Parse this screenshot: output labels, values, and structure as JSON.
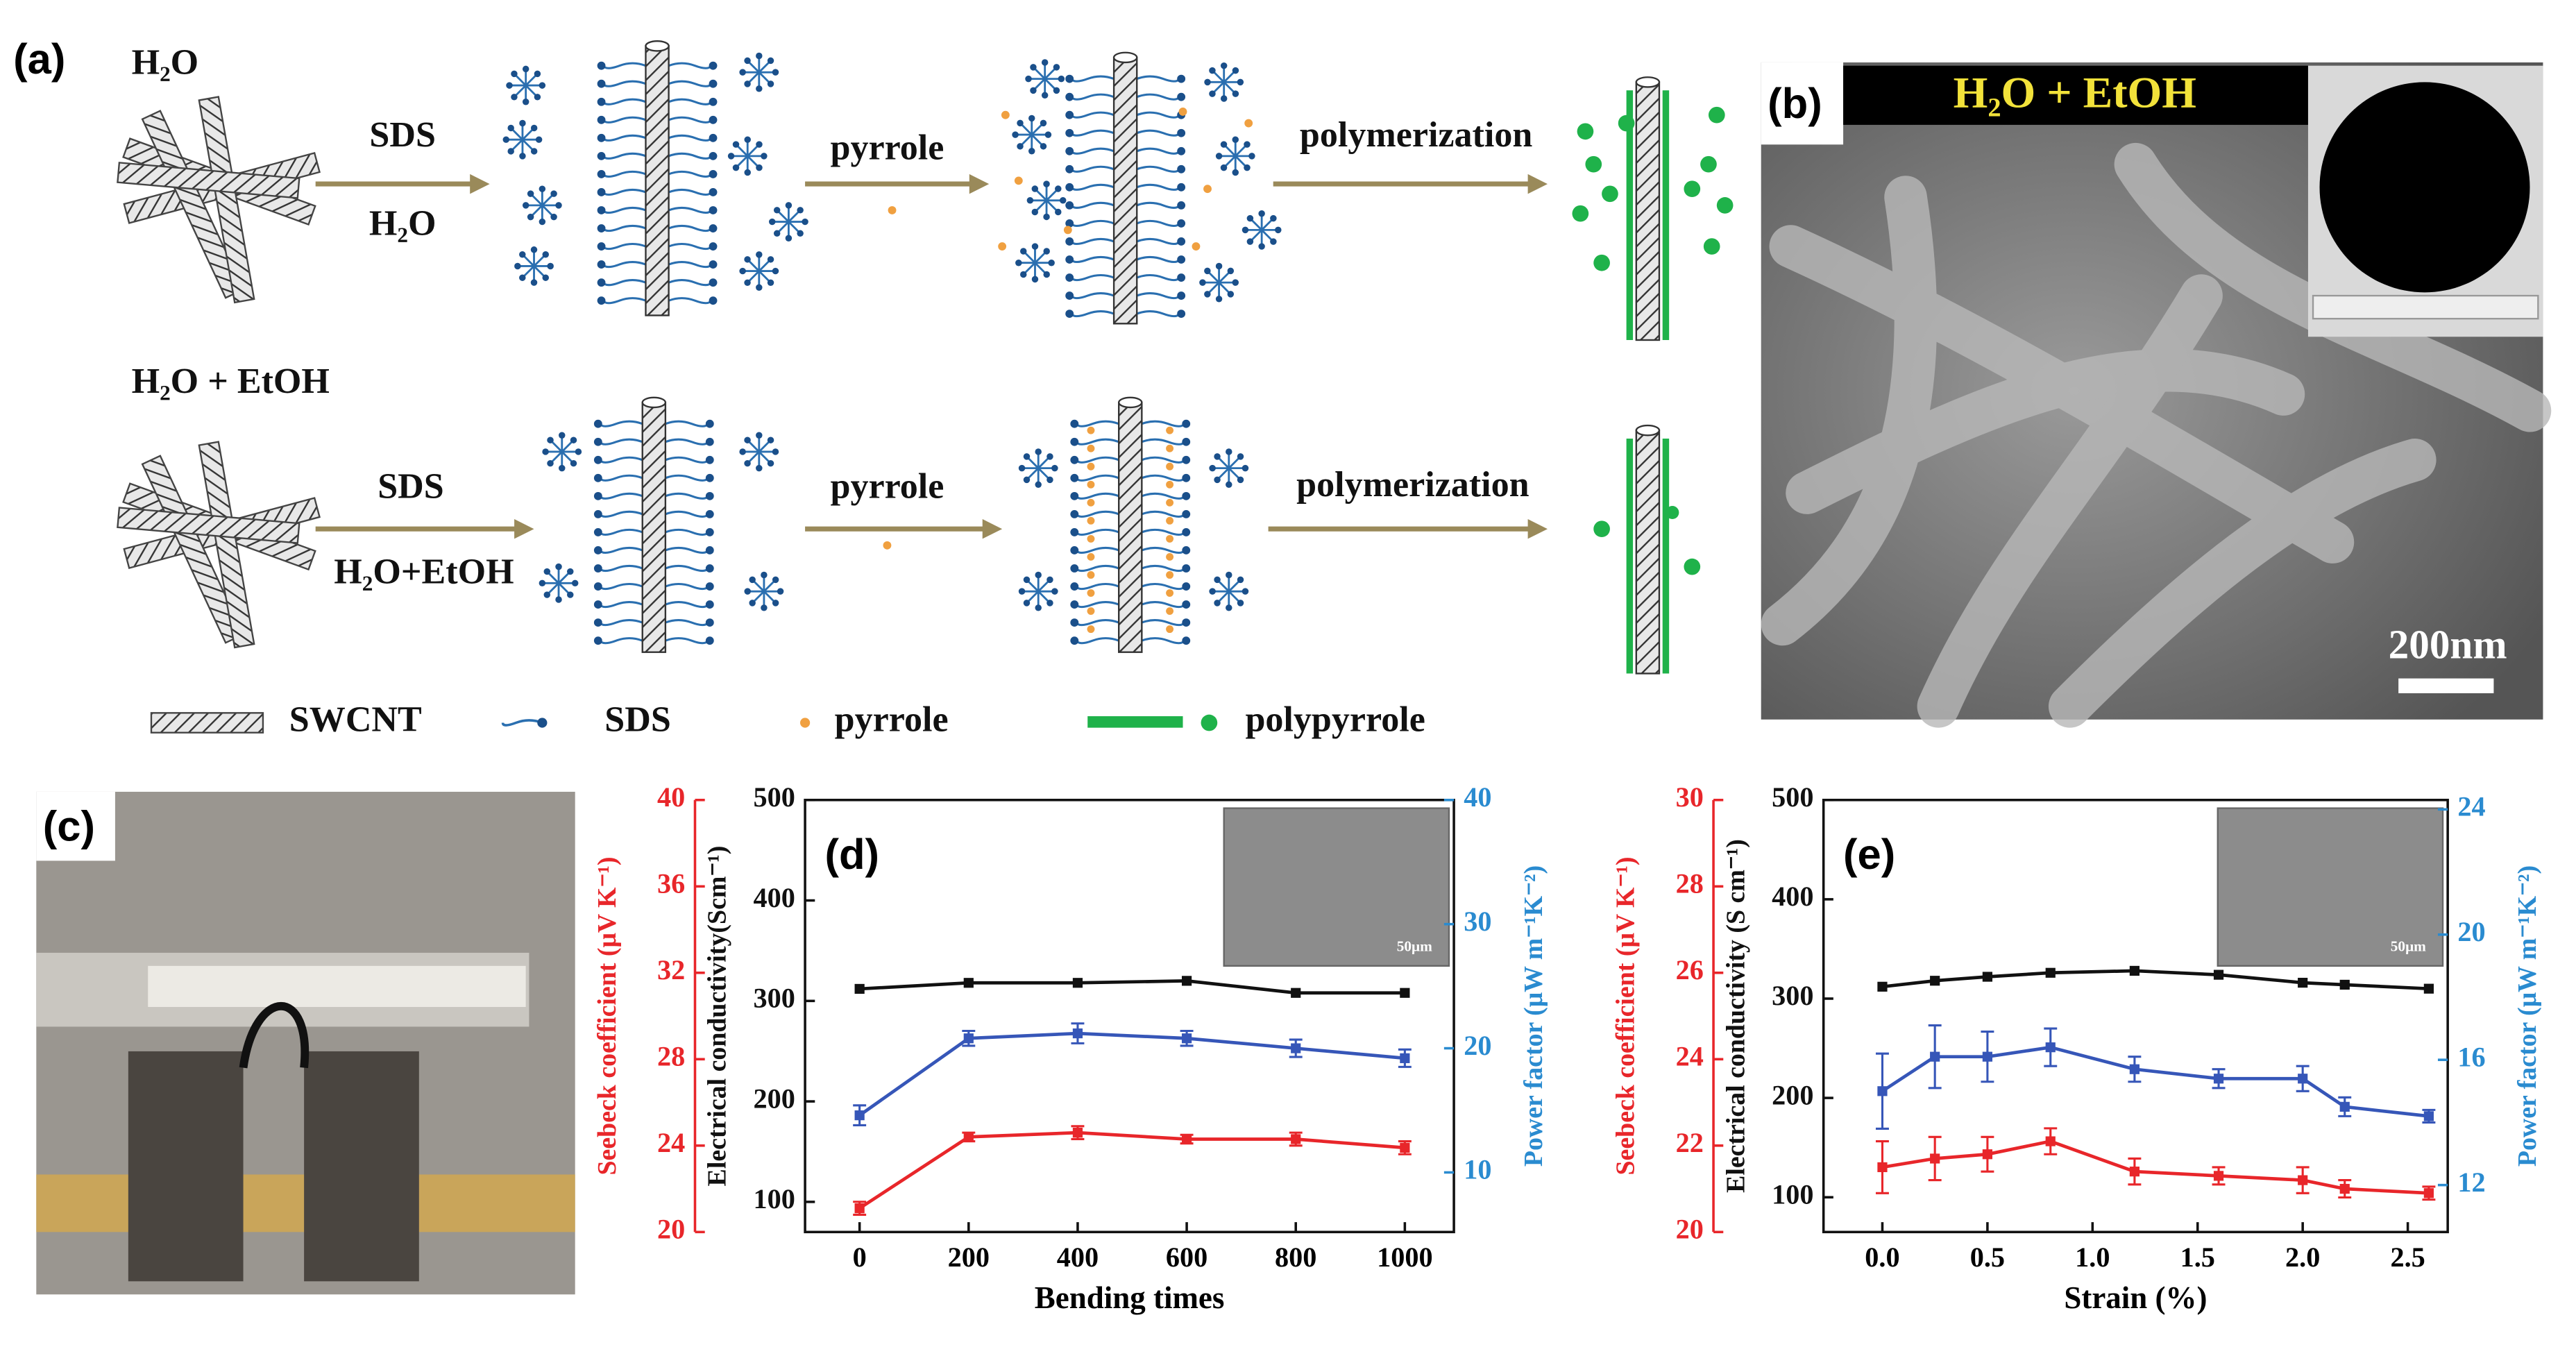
{
  "panels": {
    "a": "(a)",
    "b": "(b)",
    "c": "(c)"
  },
  "schematic": {
    "row1": {
      "solvent": "H₂O",
      "reagent": "SDS",
      "medium": "H₂O",
      "monomer": "pyrrole",
      "process": "polymerization"
    },
    "row2": {
      "solvent": "H₂O + EtOH",
      "reagent": "SDS",
      "medium": "H₂O+EtOH",
      "monomer": "pyrrole",
      "process": "polymerization"
    },
    "legend": [
      "SWCNT",
      "SDS",
      "pyrrole",
      "polypyrrole"
    ]
  },
  "sem": {
    "label": "H₂O + EtOH",
    "scale_bar": "200nm"
  },
  "chart_data": [
    {
      "type": "line",
      "label": "(d)",
      "inset_scale": "50μm",
      "x": [
        0,
        200,
        400,
        600,
        800,
        1000
      ],
      "xlabel": "Bending times",
      "xlim": [
        -100,
        1090
      ],
      "xticks": [
        0,
        200,
        400,
        600,
        800,
        1000
      ],
      "ylabel": "Electrical conductivity(Scm⁻¹)",
      "ylim": [
        70,
        500
      ],
      "yticks": [
        100,
        200,
        300,
        400,
        500
      ],
      "y2label": "Power factor (μW m⁻¹K⁻²)",
      "y2lim": [
        5.2,
        40
      ],
      "y2ticks": [
        10,
        20,
        30,
        40
      ],
      "y3label": "Seebeck coefficient (μV K⁻¹)",
      "y3lim": [
        20,
        40
      ],
      "y3ticks": [
        20,
        24,
        28,
        32,
        36,
        40
      ],
      "series": [
        {
          "color": "#111111",
          "axis": "y",
          "values": [
            312,
            318,
            318,
            320,
            308,
            308
          ]
        },
        {
          "color": "#3656b8",
          "axis": "y2",
          "values": [
            14.6,
            20.8,
            21.2,
            20.8,
            20.0,
            19.2
          ],
          "errors": [
            0.8,
            0.6,
            0.8,
            0.6,
            0.7,
            0.7
          ]
        },
        {
          "color": "#e8262a",
          "axis": "y3",
          "values": [
            21.1,
            24.4,
            24.6,
            24.3,
            24.3,
            23.9
          ],
          "errors": [
            0.3,
            0.2,
            0.3,
            0.2,
            0.3,
            0.3
          ]
        }
      ]
    },
    {
      "type": "line",
      "label": "(e)",
      "inset_scale": "50μm",
      "x": [
        0,
        0.25,
        0.5,
        0.8,
        1.2,
        1.6,
        2.0,
        2.2,
        2.6
      ],
      "xlabel": "Strain (%)",
      "xlim": [
        -0.28,
        2.69
      ],
      "xticks": [
        {
          "value": 0,
          "label": "0.0"
        },
        0.5,
        {
          "value": 1,
          "label": "1.0"
        },
        1.5,
        {
          "value": 2,
          "label": "2.0"
        },
        2.5
      ],
      "ylabel": "Electrical conductivity (S cm⁻¹)",
      "ylim": [
        65,
        500
      ],
      "yticks": [
        100,
        200,
        300,
        400,
        500
      ],
      "y2label": "Power factor (μW m⁻¹K⁻²)",
      "y2lim": [
        10.5,
        24.3
      ],
      "y2ticks": [
        12,
        16,
        20,
        24
      ],
      "y3label": "Seebeck coefficient (μV K⁻¹)",
      "y3lim": [
        20,
        30
      ],
      "y3ticks": [
        20,
        22,
        24,
        26,
        28,
        30
      ],
      "series": [
        {
          "color": "#111111",
          "axis": "y",
          "values": [
            312,
            318,
            322,
            326,
            328,
            324,
            316,
            314,
            310
          ]
        },
        {
          "color": "#3656b8",
          "axis": "y2",
          "values": [
            15.0,
            16.1,
            16.1,
            16.4,
            15.7,
            15.4,
            15.4,
            14.5,
            14.2
          ],
          "errors": [
            1.2,
            1.0,
            0.8,
            0.6,
            0.4,
            0.3,
            0.4,
            0.3,
            0.2
          ]
        },
        {
          "color": "#e8262a",
          "axis": "y3",
          "values": [
            21.5,
            21.7,
            21.8,
            22.1,
            21.4,
            21.3,
            21.2,
            21.0,
            20.9
          ],
          "errors": [
            0.6,
            0.5,
            0.4,
            0.3,
            0.3,
            0.2,
            0.3,
            0.2,
            0.15
          ]
        }
      ]
    }
  ]
}
